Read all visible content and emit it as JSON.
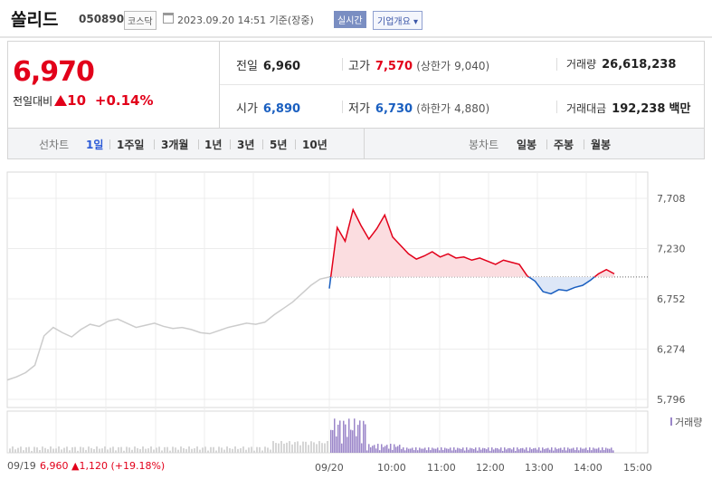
{
  "header": {
    "name": "쏠리드",
    "code": "050890",
    "market": "코스닥",
    "datetime": "2023.09.20 14:51",
    "basis": "기준(장중)",
    "realtime": "실시간",
    "company_info": "기업개요"
  },
  "quote": {
    "price": "6,970",
    "change_label": "전일대비",
    "change": "10",
    "change_pct": "+0.14%",
    "prev_close_label": "전일",
    "prev_close": "6,960",
    "open_label": "시가",
    "open": "6,890",
    "high_label": "고가",
    "high": "7,570",
    "upper_limit_label": "(상한가",
    "upper_limit": "9,040)",
    "low_label": "저가",
    "low": "6,730",
    "lower_limit_label": "(하한가",
    "lower_limit": "4,880)",
    "volume_label": "거래량",
    "volume": "26,618,238",
    "amount_label": "거래대금",
    "amount": "192,238",
    "amount_unit": "백만"
  },
  "tabs": {
    "line_label": "선차트",
    "line_items": [
      "1일",
      "1주일",
      "3개월",
      "1년",
      "3년",
      "5년",
      "10년"
    ],
    "candle_label": "봉차트",
    "candle_items": [
      "일봉",
      "주봉",
      "월봉"
    ]
  },
  "chart_data": {
    "type": "line",
    "y_ticks": [
      "7,708",
      "7,230",
      "6,752",
      "6,274",
      "5,796"
    ],
    "ylim": [
      5796,
      7708
    ],
    "x_ticks": [
      "09/20",
      "10:00",
      "11:00",
      "12:00",
      "13:00",
      "14:00",
      "15:00"
    ],
    "baseline": 6960,
    "volume_label": "거래량",
    "prev_day_label": "09/19",
    "prev_day_close": "6,960",
    "prev_day_change": "1,120",
    "prev_day_pct": "(+19.18%)",
    "colors": {
      "up": "#e2001a",
      "down": "#1a5fc0",
      "prev": "#cccccc",
      "volume": "#9b86c9"
    },
    "prev_series": [
      5980,
      6010,
      6050,
      6120,
      6400,
      6480,
      6430,
      6390,
      6460,
      6510,
      6490,
      6540,
      6560,
      6520,
      6480,
      6500,
      6520,
      6490,
      6470,
      6480,
      6460,
      6430,
      6420,
      6450,
      6480,
      6500,
      6520,
      6510,
      6530,
      6600,
      6660,
      6720,
      6800,
      6880,
      6940,
      6960
    ],
    "today_series": [
      6850,
      7430,
      7300,
      7600,
      7450,
      7320,
      7420,
      7550,
      7340,
      7260,
      7180,
      7130,
      7160,
      7200,
      7150,
      7180,
      7140,
      7150,
      7120,
      7140,
      7110,
      7080,
      7120,
      7100,
      7080,
      6970,
      6920,
      6820,
      6800,
      6840,
      6830,
      6860,
      6880,
      6930,
      6990,
      7030,
      6990
    ]
  }
}
